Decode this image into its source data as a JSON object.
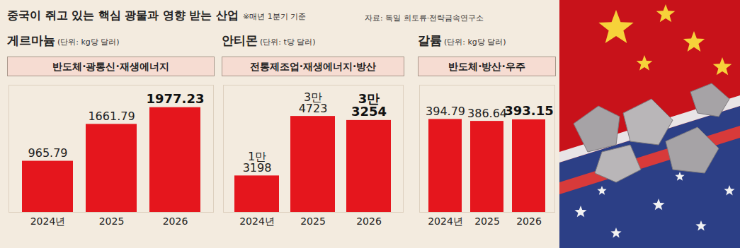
{
  "title": "중국이 쥐고 있는 핵심 광물과 영향 받는 산업",
  "note": "※매년 1분기 기준",
  "source": "자료: 독일 희토류·전략금속연구소",
  "chart_data": [
    {
      "type": "bar",
      "title": "게르마늄",
      "subtitle": "(단위: kg당 달러)",
      "annotation": "반도체·광통신·재생에너지",
      "categories": [
        "2024년",
        "2025",
        "2026"
      ],
      "values": [
        965.79,
        1661.79,
        1977.23
      ],
      "color": "#e5161d",
      "ylim": [
        0,
        2400
      ],
      "grid": false,
      "data_labels": true,
      "tick_labels": "x"
    },
    {
      "type": "bar",
      "title": "안티몬",
      "subtitle": "(단위: t당 달러)",
      "annotation": "전통제조업·재생에너지·방산",
      "categories": [
        "2024년",
        "2025",
        "2026"
      ],
      "values": [
        13198,
        34723,
        33254
      ],
      "value_labels": [
        "1만\n3198",
        "3만\n4723",
        "3만\n3254"
      ],
      "color": "#e5161d",
      "ylim": [
        0,
        46000
      ],
      "grid": false,
      "data_labels": true,
      "tick_labels": "x"
    },
    {
      "type": "bar",
      "title": "갈륨",
      "subtitle": "(단위: kg당 달러)",
      "annotation": "반도체·방산·우주",
      "categories": [
        "2024년",
        "2025",
        "2026"
      ],
      "values": [
        394.79,
        386.64,
        393.15
      ],
      "color": "#e5161d",
      "ylim": [
        0,
        540
      ],
      "grid": false,
      "data_labels": true,
      "tick_labels": "x"
    }
  ]
}
